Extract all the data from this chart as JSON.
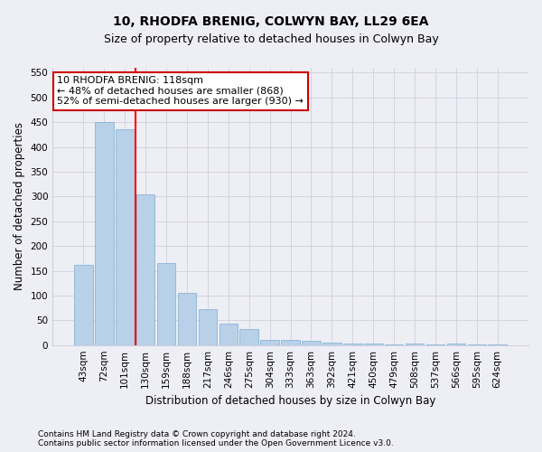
{
  "title": "10, RHODFA BRENIG, COLWYN BAY, LL29 6EA",
  "subtitle": "Size of property relative to detached houses in Colwyn Bay",
  "xlabel": "Distribution of detached houses by size in Colwyn Bay",
  "ylabel": "Number of detached properties",
  "categories": [
    "43sqm",
    "72sqm",
    "101sqm",
    "130sqm",
    "159sqm",
    "188sqm",
    "217sqm",
    "246sqm",
    "275sqm",
    "304sqm",
    "333sqm",
    "363sqm",
    "392sqm",
    "421sqm",
    "450sqm",
    "479sqm",
    "508sqm",
    "537sqm",
    "566sqm",
    "595sqm",
    "624sqm"
  ],
  "values": [
    162,
    450,
    435,
    305,
    165,
    105,
    73,
    44,
    32,
    10,
    10,
    8,
    5,
    3,
    3,
    2,
    3,
    2,
    3,
    1,
    2
  ],
  "bar_color": "#b8d0e8",
  "bar_edge_color": "#7aafd4",
  "grid_color": "#d0d0e0",
  "red_line_x": 2.5,
  "annotation_text": "10 RHODFA BRENIG: 118sqm\n← 48% of detached houses are smaller (868)\n52% of semi-detached houses are larger (930) →",
  "annotation_box_color": "#ffffff",
  "annotation_box_edge": "#cc0000",
  "footer1": "Contains HM Land Registry data © Crown copyright and database right 2024.",
  "footer2": "Contains public sector information licensed under the Open Government Licence v3.0.",
  "ylim": [
    0,
    560
  ],
  "yticks": [
    0,
    50,
    100,
    150,
    200,
    250,
    300,
    350,
    400,
    450,
    500,
    550
  ],
  "background_color": "#eeeef5",
  "title_fontsize": 10,
  "subtitle_fontsize": 9,
  "tick_fontsize": 7.5,
  "label_fontsize": 8.5,
  "footer_fontsize": 6.5,
  "annotation_fontsize": 8
}
